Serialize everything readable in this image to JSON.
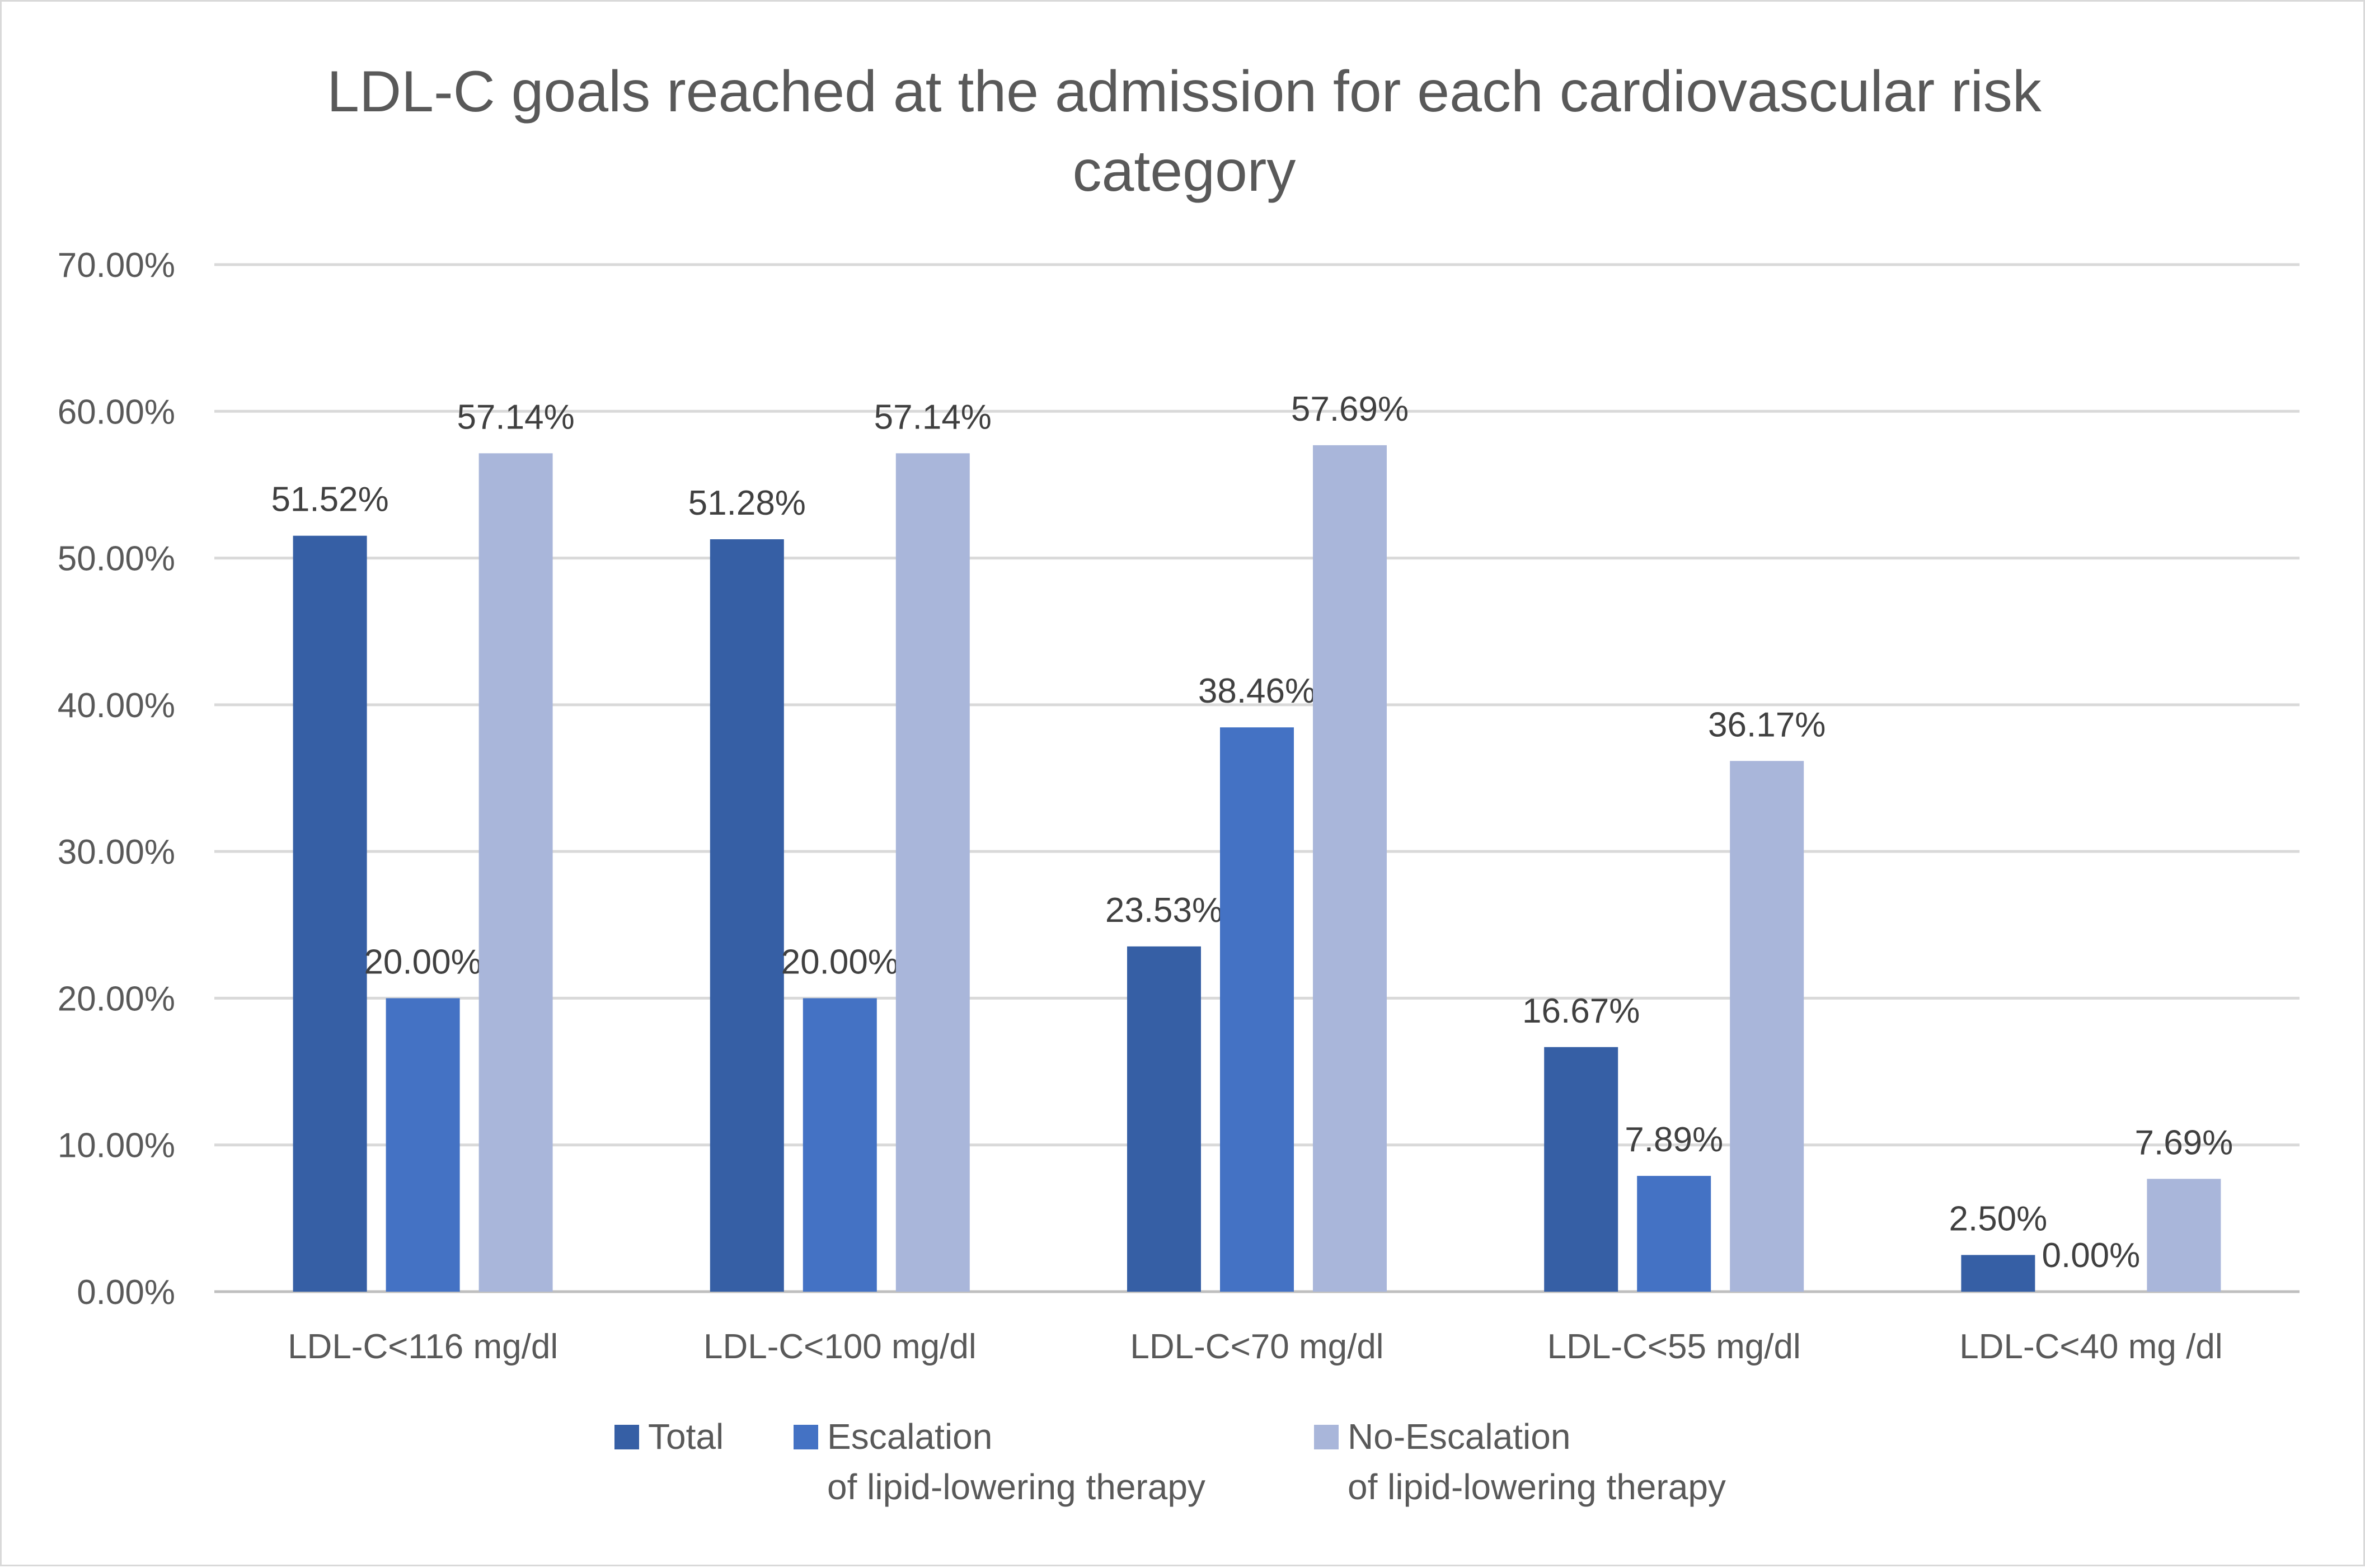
{
  "chart_data": {
    "type": "bar",
    "title": "LDL-C goals reached at the admission for each cardiovascular risk category",
    "xlabel": "",
    "ylabel": "",
    "ylim": [
      0,
      70
    ],
    "yticks": [
      "0.00%",
      "10.00%",
      "20.00%",
      "30.00%",
      "40.00%",
      "50.00%",
      "60.00%",
      "70.00%"
    ],
    "grid": true,
    "legend_position": "bottom",
    "categories": [
      "LDL-C<116 mg/dl",
      "LDL-C<100 mg/dl",
      "LDL-C<70 mg/dl",
      "LDL-C<55 mg/dl",
      "LDL-C<40 mg /dl"
    ],
    "series": [
      {
        "name": "Total",
        "color": "#365fa5",
        "values": [
          51.52,
          51.28,
          23.53,
          16.67,
          2.5
        ],
        "labels": [
          "51.52%",
          "51.28%",
          "23.53%",
          "16.67%",
          "2.50%"
        ]
      },
      {
        "name": "Escalation\nof lipid-lowering therapy",
        "color": "#4472c4",
        "values": [
          20.0,
          20.0,
          38.46,
          7.89,
          0.0
        ],
        "labels": [
          "20.00%",
          "20.00%",
          "38.46%",
          "7.89%",
          "0.00%"
        ]
      },
      {
        "name": "No-Escalation\nof lipid-lowering therapy",
        "color": "#a9b6da",
        "values": [
          57.14,
          57.14,
          57.69,
          36.17,
          7.69
        ],
        "labels": [
          "57.14%",
          "57.14%",
          "57.69%",
          "36.17%",
          "7.69%"
        ]
      }
    ]
  }
}
